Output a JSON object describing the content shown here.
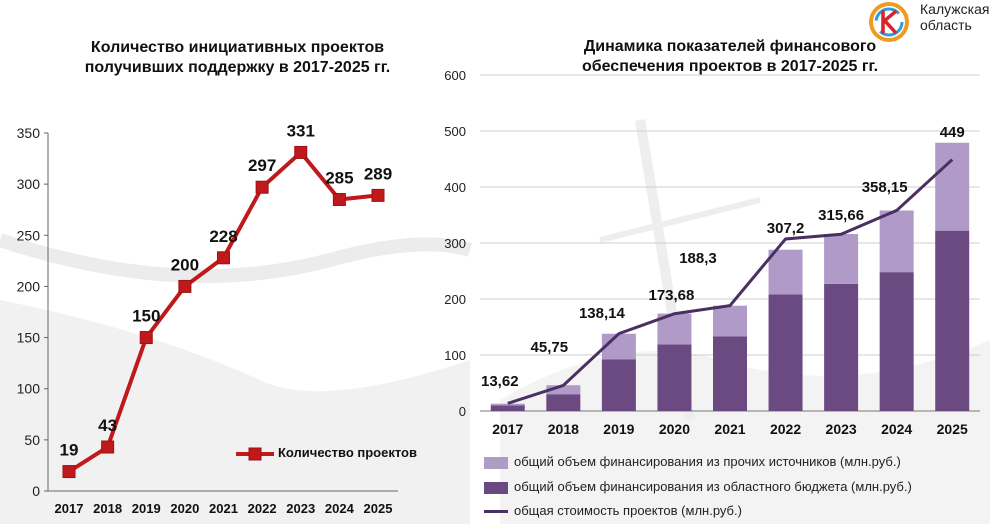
{
  "logo": {
    "line1": "Калужская",
    "line2": "область"
  },
  "chart_data": [
    {
      "type": "line",
      "title_lines": [
        "Количество инициативных проектов",
        "получивших поддержку в 2017-2025 гг."
      ],
      "categories": [
        "2017",
        "2018",
        "2019",
        "2020",
        "2021",
        "2022",
        "2023",
        "2024",
        "2025"
      ],
      "series": [
        {
          "name": "Количество проектов",
          "values": [
            19,
            43,
            150,
            200,
            228,
            297,
            331,
            285,
            289
          ],
          "color": "#c0191b"
        }
      ],
      "ylim": [
        0,
        350
      ],
      "yticks": [
        0,
        50,
        100,
        150,
        200,
        250,
        300,
        350
      ],
      "legend": "bottom-right"
    },
    {
      "type": "bar",
      "stacked": true,
      "title_lines": [
        "Динамика показателей финансового",
        "обеспечения проектов в 2017-2025 гг."
      ],
      "categories": [
        "2017",
        "2018",
        "2019",
        "2020",
        "2021",
        "2022",
        "2023",
        "2024",
        "2025"
      ],
      "ylim": [
        0,
        600
      ],
      "yticks": [
        0,
        100,
        200,
        300,
        400,
        500,
        600
      ],
      "series": [
        {
          "name": "общий объем финансирования из областного бюджета (млн.руб.)",
          "type": "bar",
          "color": "#6b4a82",
          "values": [
            10,
            30,
            92,
            119,
            133,
            208,
            227,
            248,
            322
          ]
        },
        {
          "name": "общий объем финансирования из прочих источников  (млн.руб.)",
          "type": "bar",
          "color": "#b09ac8",
          "values": [
            3,
            16,
            46,
            55,
            55,
            80,
            89,
            110,
            157
          ]
        },
        {
          "name": "общая стоимость проектов (млн.руб.)",
          "type": "line",
          "color": "#4a2f63",
          "values": [
            13.62,
            45.75,
            138.14,
            173.68,
            188.3,
            307.2,
            315.66,
            358.15,
            449
          ],
          "labels": [
            "13,62",
            "45,75",
            "138,14",
            "173,68",
            "188,3",
            "307,2",
            "315,66",
            "358,15",
            "449"
          ]
        }
      ],
      "legend": "bottom"
    }
  ]
}
